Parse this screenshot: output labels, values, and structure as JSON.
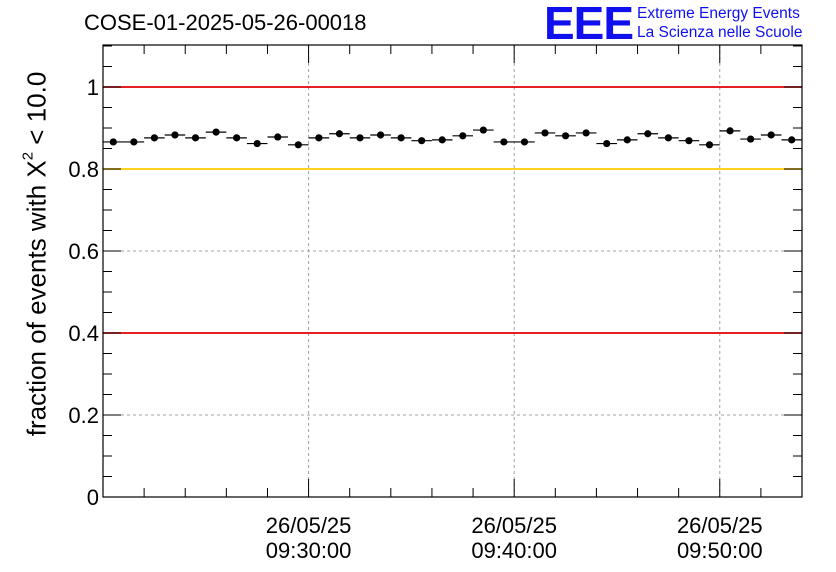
{
  "header": {
    "title": "COSE-01-2025-05-26-00018",
    "logo_mark": "EEE",
    "logo_line1": "Extreme Energy Events",
    "logo_line2": "La Scienza nelle Scuole"
  },
  "chart_data": {
    "type": "scatter",
    "title": "COSE-01-2025-05-26-00018",
    "ylabel_prefix": "fraction of events with ",
    "ylabel_chi": "Χ",
    "ylabel_exp": "2",
    "ylabel_suffix": " < 10.0",
    "ylim": [
      0,
      1.1
    ],
    "yticks": [
      {
        "value": 0,
        "label": "0"
      },
      {
        "value": 0.2,
        "label": "0.2"
      },
      {
        "value": 0.4,
        "label": "0.4"
      },
      {
        "value": 0.6,
        "label": "0.6"
      },
      {
        "value": 0.8,
        "label": "0.8"
      },
      {
        "value": 1.0,
        "label": "1"
      }
    ],
    "x_range_minutes": [
      0,
      34
    ],
    "xticks": [
      {
        "minute": 10,
        "date": "26/05/25",
        "time": "09:30:00"
      },
      {
        "minute": 20,
        "date": "26/05/25",
        "time": "09:40:00"
      },
      {
        "minute": 30,
        "date": "26/05/25",
        "time": "09:50:00"
      }
    ],
    "reference_lines": [
      {
        "y": 1.0,
        "color": "#e00000"
      },
      {
        "y": 0.8,
        "color": "#ffcc00"
      },
      {
        "y": 0.4,
        "color": "#e00000"
      }
    ],
    "bin_width_minutes": 1,
    "x": [
      0.5,
      1.5,
      2.5,
      3.5,
      4.5,
      5.5,
      6.5,
      7.5,
      8.5,
      9.5,
      10.5,
      11.5,
      12.5,
      13.5,
      14.5,
      15.5,
      16.5,
      17.5,
      18.5,
      19.5,
      20.5,
      21.5,
      22.5,
      23.5,
      24.5,
      25.5,
      26.5,
      27.5,
      28.5,
      29.5,
      30.5,
      31.5,
      32.5,
      33.5
    ],
    "values": [
      0.866,
      0.866,
      0.876,
      0.883,
      0.876,
      0.89,
      0.876,
      0.862,
      0.878,
      0.859,
      0.876,
      0.886,
      0.876,
      0.883,
      0.876,
      0.869,
      0.871,
      0.881,
      0.895,
      0.866,
      0.866,
      0.888,
      0.881,
      0.888,
      0.862,
      0.871,
      0.886,
      0.876,
      0.869,
      0.859,
      0.893,
      0.873,
      0.883,
      0.871
    ],
    "point_color": "#000000"
  }
}
